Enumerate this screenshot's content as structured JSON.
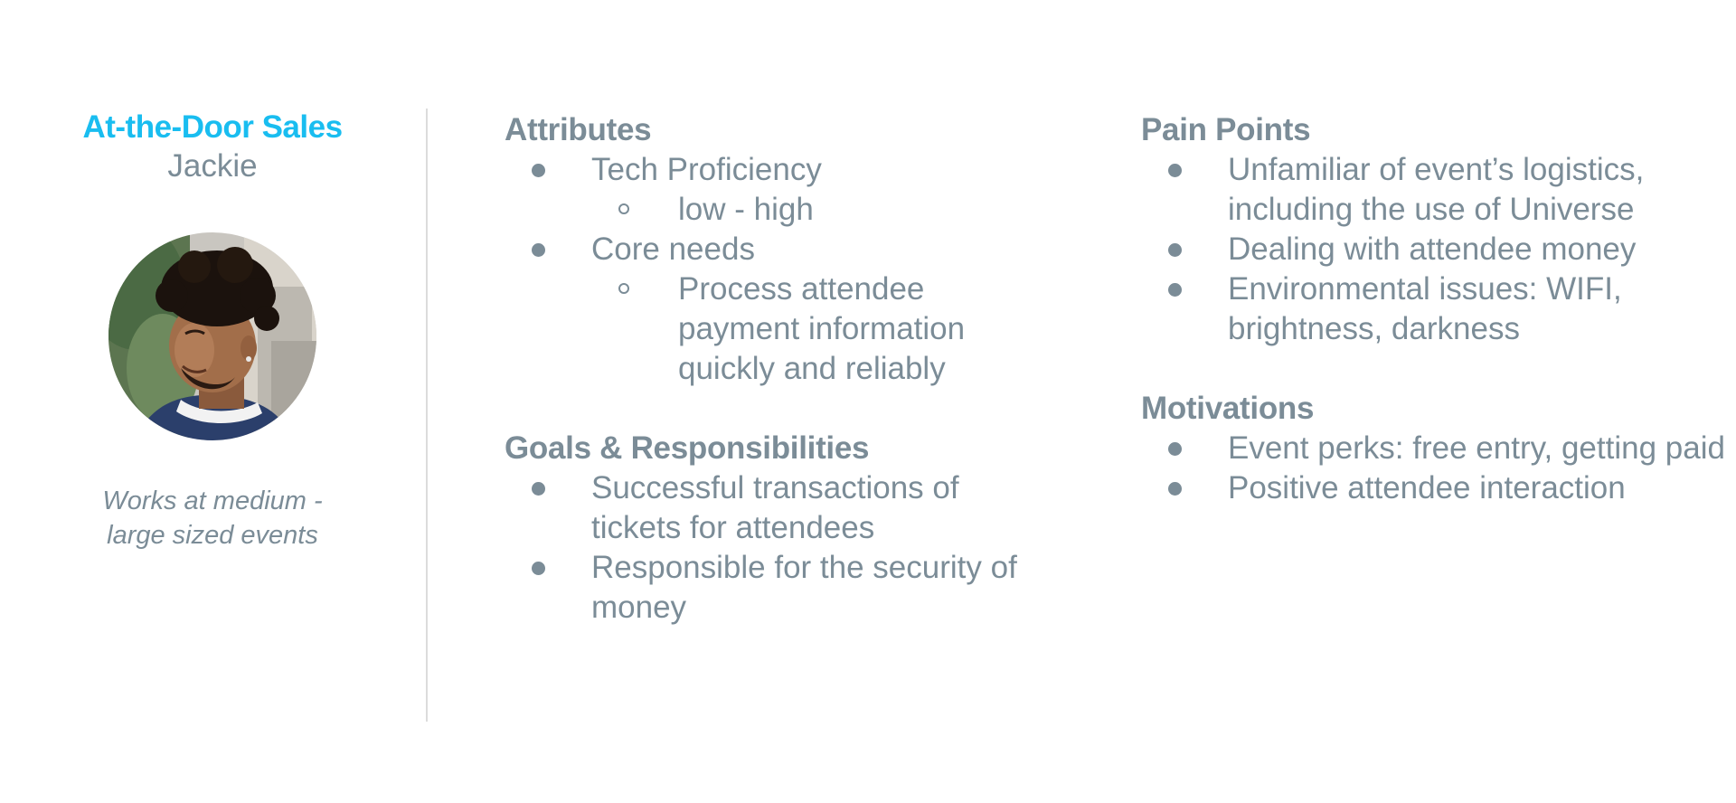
{
  "profile": {
    "role": "At-the-Door Sales",
    "name": "Jackie",
    "tagline_line1": "Works at medium -",
    "tagline_line2": "large sized events"
  },
  "attributes": {
    "title": "Attributes",
    "items": [
      {
        "label": "Tech Proficiency",
        "sub": [
          "low - high"
        ]
      },
      {
        "label": "Core needs",
        "sub": [
          "Process attendee payment information quickly and reliably"
        ]
      }
    ]
  },
  "goals": {
    "title": "Goals & Responsibilities",
    "items": [
      "Successful transactions of tickets for attendees",
      "Responsible for the security of money"
    ]
  },
  "pain_points": {
    "title": "Pain Points",
    "items": [
      "Unfamiliar of event’s logistics, including the use of Universe",
      "Dealing with attendee money",
      "Environmental issues: WIFI, brightness, darkness"
    ]
  },
  "motivations": {
    "title": "Motivations",
    "items": [
      "Event perks: free entry, getting paid",
      "Positive attendee interaction"
    ]
  },
  "colors": {
    "accent": "#19bdf0",
    "text": "#7b8c97",
    "divider": "#dcdcdc"
  }
}
